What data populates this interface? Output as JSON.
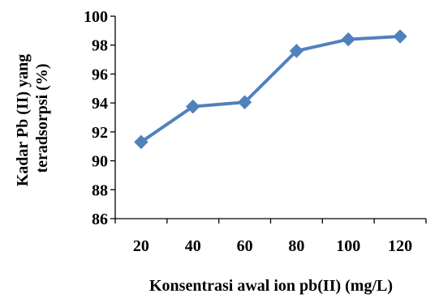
{
  "chart_data": {
    "type": "line",
    "title": "",
    "xlabel": "Konsentrasi awal ion pb(II) (mg/L)",
    "ylabel_lines": [
      "Kadar Pb (II) yang",
      "teradsorpsi (%)"
    ],
    "categories": [
      "20",
      "40",
      "60",
      "80",
      "100",
      "120"
    ],
    "series": [
      {
        "values": [
          91.3,
          93.75,
          94.05,
          97.6,
          98.4,
          98.6
        ]
      }
    ],
    "ylim": [
      86,
      100
    ],
    "yticks": [
      "86",
      "88",
      "90",
      "92",
      "94",
      "96",
      "98",
      "100"
    ],
    "grid": false,
    "legend": "none",
    "colors": {
      "line": "#4f81bd",
      "marker": "#4f81bd",
      "axis": "#000000"
    },
    "marker": "diamond"
  }
}
